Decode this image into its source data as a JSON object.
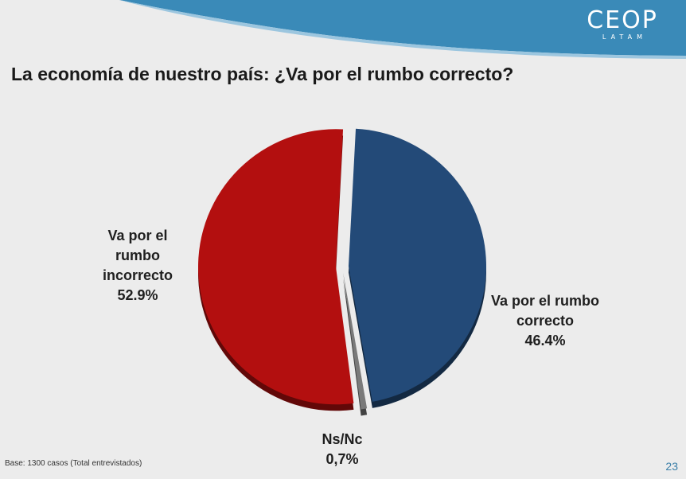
{
  "logo": {
    "main": "CEOP",
    "sub": "LATAM"
  },
  "title": "La economía de nuestro país: ¿Va por el rumbo correcto?",
  "chart_data": {
    "type": "pie",
    "title": "La economía de nuestro país: ¿Va por el rumbo correcto?",
    "slices": [
      {
        "label_lines": [
          "Va por el rumbo",
          "correcto"
        ],
        "value_text": "46.4%",
        "value": 46.4,
        "color": "#234a78"
      },
      {
        "label_lines": [
          "Ns/Nc"
        ],
        "value_text": "0,7%",
        "value": 0.7,
        "color": "#7a7a7a"
      },
      {
        "label_lines": [
          "Va por el",
          "rumbo",
          "incorrecto"
        ],
        "value_text": "52.9%",
        "value": 52.9,
        "color": "#b30f0f"
      }
    ]
  },
  "footnote": "Base: 1300 casos (Total entrevistados)",
  "page_number": "23",
  "colors": {
    "header_blue": "#3a8ab8",
    "background": "#ececec"
  }
}
